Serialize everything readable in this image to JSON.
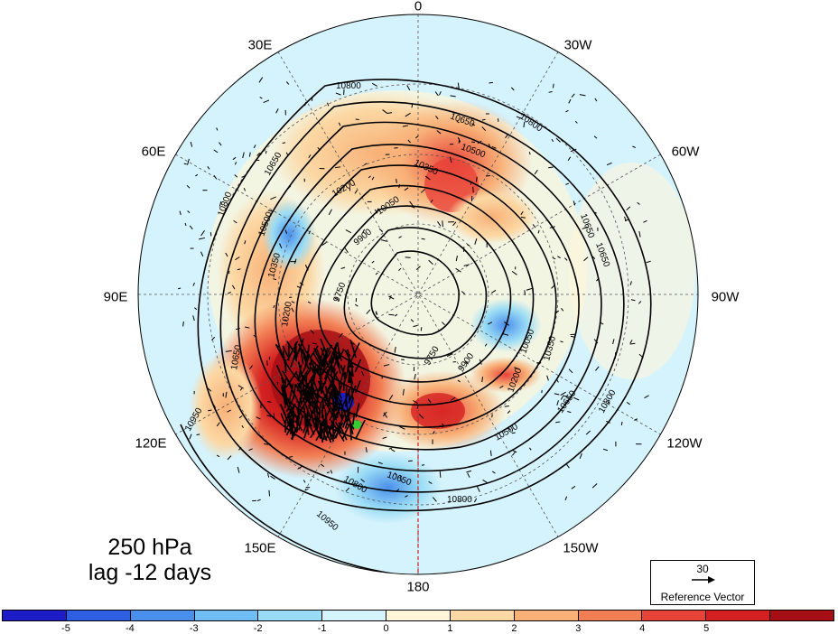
{
  "map": {
    "title_line1": "250 hPa",
    "title_line2": "lag -12 days",
    "projection": "north-polar-stereographic",
    "longitude_labels": [
      "0",
      "30W",
      "60W",
      "90W",
      "120W",
      "150W",
      "180",
      "150E",
      "120E",
      "90E",
      "60E",
      "30E"
    ],
    "contour_labels": [
      "10800",
      "10650",
      "10500",
      "10350",
      "10200",
      "10050",
      "9900",
      "9750",
      "10950"
    ],
    "colors": {
      "warm_dark": "#a50f15",
      "warm_mid": "#ef3b2c",
      "warm_light": "#f7a46b",
      "warm_pale": "#fde6c4",
      "cool_pale": "#d9f3fb",
      "cool_light": "#8fd6f2",
      "cool_mid": "#3d8fe6",
      "cool_dark": "#1f1fbf",
      "highlight_green": "#33cc33"
    }
  },
  "reference_vector": {
    "magnitude": "30",
    "caption": "Reference Vector"
  },
  "colorbar": {
    "colors": [
      "#1d1dc7",
      "#2e5fe3",
      "#4a8fec",
      "#6fbdf3",
      "#9adcf5",
      "#d5f3fc",
      "#fff5d9",
      "#fcd8a4",
      "#f8b077",
      "#f27f54",
      "#e84339",
      "#d42020",
      "#a50f15"
    ],
    "tick_labels": [
      "-5",
      "-4",
      "-3",
      "-2",
      "-1",
      "0",
      "1",
      "2",
      "3",
      "4",
      "5"
    ]
  }
}
